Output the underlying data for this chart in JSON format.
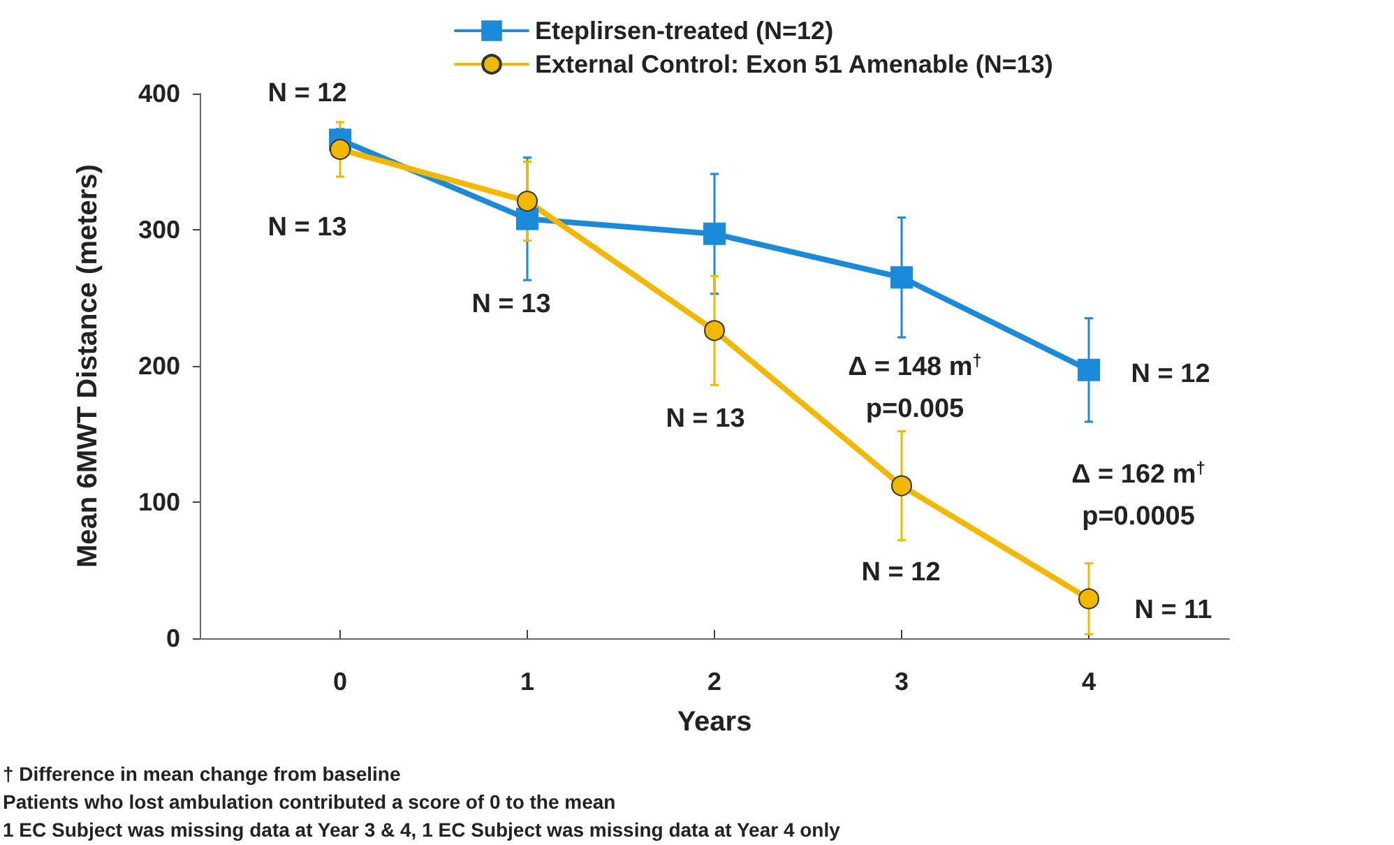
{
  "chart_data": {
    "type": "line",
    "xlabel": "Years",
    "ylabel": "Mean 6MWT Distance (meters)",
    "x": [
      0,
      1,
      2,
      3,
      4
    ],
    "series": [
      {
        "name": "Eteplirsen-treated (N=12)",
        "color": "#1b8ad8",
        "marker": "square",
        "values": [
          366,
          308,
          297,
          265,
          197
        ],
        "errors": [
          8,
          45,
          44,
          44,
          38
        ]
      },
      {
        "name": "External Control: Exon 51 Amenable (N=13)",
        "color": "#f2b800",
        "marker": "circle",
        "values": [
          359,
          321,
          226,
          112,
          29
        ],
        "errors": [
          20,
          29,
          40,
          40,
          26
        ]
      }
    ],
    "xlim": [
      -0.75,
      4.75
    ],
    "xticks": [
      0,
      1,
      2,
      3,
      4
    ],
    "ylim": [
      0,
      400
    ],
    "yticks": [
      0,
      100,
      200,
      300,
      400
    ],
    "legend": "top",
    "line_style": "solid",
    "annotations": [
      "N = 12",
      "N = 13",
      "N = 13",
      "N = 13",
      "Δ = 148 m$^{†}$",
      "p=0.005",
      "N = 12",
      "Δ = 162 m$^{†}$",
      "p=0.0005",
      "N = 12",
      "N = 11",
      "† Difference in mean change from baseline",
      "Patients who lost ambulation contributed a score of 0 to the mean",
      "1 EC Subject was missing data at Year 3 & 4, 1 EC Subject was missing data at Year 4 only"
    ]
  }
}
